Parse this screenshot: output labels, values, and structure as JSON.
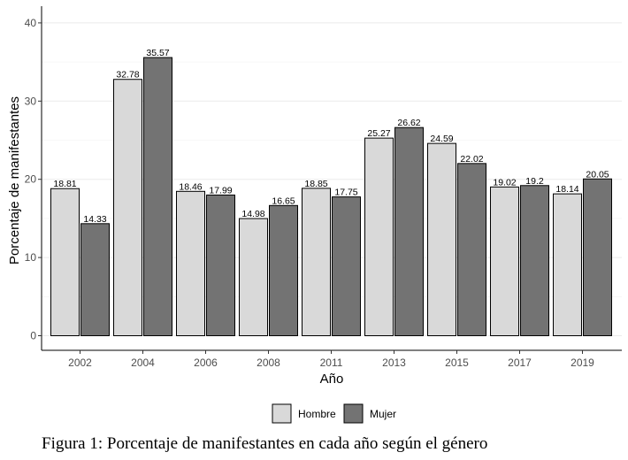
{
  "chart_data": {
    "type": "bar",
    "title": "",
    "xlabel": "Año",
    "ylabel": "Porcentaje de manifestantes",
    "categories": [
      "2002",
      "2004",
      "2006",
      "2008",
      "2011",
      "2013",
      "2015",
      "2017",
      "2019"
    ],
    "series": [
      {
        "name": "Hombre",
        "color": "#d9d9d9",
        "values": [
          18.81,
          32.78,
          18.46,
          14.98,
          18.85,
          25.27,
          24.59,
          19.02,
          18.14
        ],
        "labels": [
          "18.81",
          "32.78",
          "18.46",
          "14.98",
          "18.85",
          "25.27",
          "24.59",
          "19.02",
          "18.14"
        ]
      },
      {
        "name": "Mujer",
        "color": "#737373",
        "values": [
          14.33,
          35.57,
          17.99,
          16.65,
          17.75,
          26.62,
          22.02,
          19.2,
          20.05
        ],
        "labels": [
          "14.33",
          "35.57",
          "17.99",
          "16.65",
          "17.75",
          "26.62",
          "22.02",
          "19.2",
          "20.05"
        ]
      }
    ],
    "yticks": [
      "0",
      "10",
      "20",
      "30",
      "40"
    ],
    "ylim": [
      0,
      41.5
    ],
    "grid": "horizontal",
    "legend_position": "bottom"
  },
  "caption": "Figura 1: Porcentaje de manifestantes en cada año según el género"
}
